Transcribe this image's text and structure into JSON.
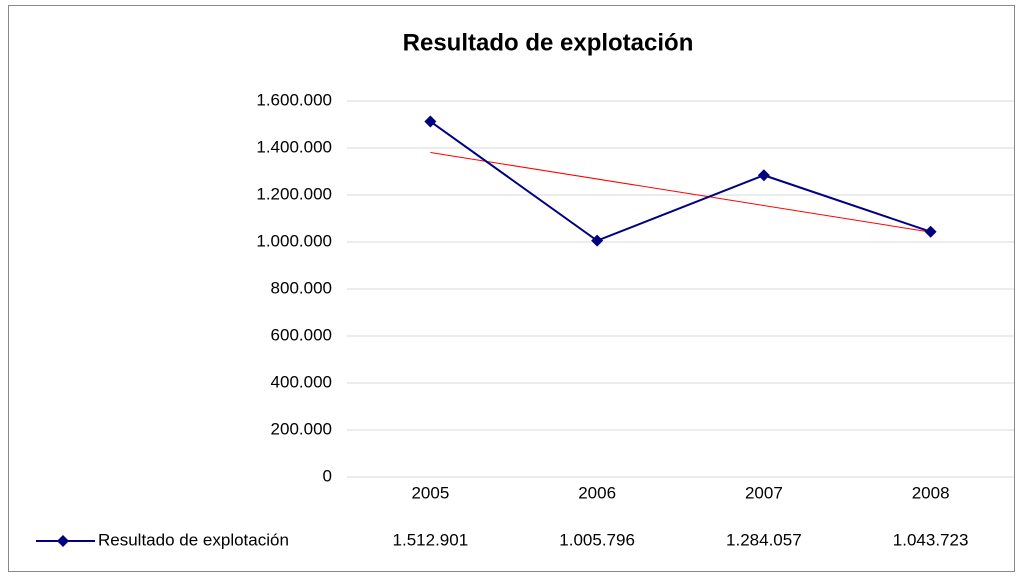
{
  "chart_data": {
    "type": "line",
    "title": "Resultado de explotación",
    "categories": [
      "2005",
      "2006",
      "2007",
      "2008"
    ],
    "series": [
      {
        "name": "Resultado de explotación",
        "color": "#000080",
        "values": [
          1512901,
          1005796,
          1284057,
          1043723
        ],
        "value_labels": [
          "1.512.901",
          "1.005.796",
          "1.284.057",
          "1.043.723"
        ]
      }
    ],
    "ylim": [
      0,
      1600000
    ],
    "yticks": [
      0,
      {
        "value": 200000,
        "label": "200.000"
      },
      {
        "value": 400000,
        "label": "400.000"
      },
      {
        "value": 600000,
        "label": "600.000"
      },
      {
        "value": 800000,
        "label": "800.000"
      },
      {
        "value": 1000000,
        "label": "1.000.000"
      },
      {
        "value": 1200000,
        "label": "1.200.000"
      },
      {
        "value": 1400000,
        "label": "1.400.000"
      },
      {
        "value": 1600000,
        "label": "1.600.000"
      }
    ],
    "grid": true,
    "trendline": {
      "type": "linear",
      "color": "#ff0000"
    },
    "legend": "bottom-left"
  }
}
